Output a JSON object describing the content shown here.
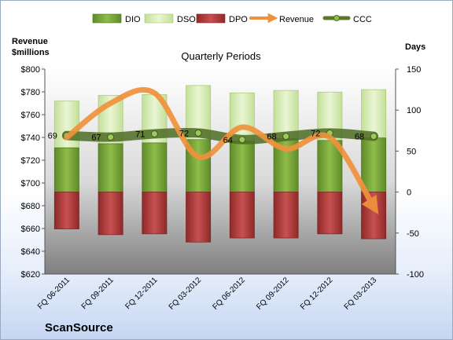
{
  "chart_data": {
    "type": "bar",
    "title": "Quarterly Periods",
    "left_axis_label_line1": "Revenue",
    "left_axis_label_line2": "$millions",
    "right_axis_label": "Days",
    "company": "ScanSource",
    "categories": [
      "FQ 06-2011",
      "FQ 09-2011",
      "FQ 12-2011",
      "FQ 03-2012",
      "FQ 06-2012",
      "FQ 09-2012",
      "FQ 12-2012",
      "FQ 03-2013"
    ],
    "left_axis": {
      "min": 620,
      "max": 800,
      "step": 20,
      "tick_labels": [
        "$620",
        "$640",
        "$660",
        "$680",
        "$700",
        "$720",
        "$740",
        "$760",
        "$780",
        "$800"
      ]
    },
    "right_axis": {
      "min": -100,
      "max": 150,
      "step": 50,
      "tick_labels": [
        "-100",
        "-50",
        "0",
        "50",
        "100",
        "150"
      ]
    },
    "series": [
      {
        "name": "DIO",
        "axis": "days",
        "kind": "stacked-bar",
        "color": "#7aa23a",
        "values": [
          54,
          59,
          60,
          64,
          62,
          65,
          63,
          66
        ]
      },
      {
        "name": "DSO",
        "axis": "days",
        "kind": "stacked-bar",
        "color": "#d6ebb4",
        "values": [
          57,
          59,
          59,
          66,
          59,
          59,
          59,
          59
        ]
      },
      {
        "name": "DPO",
        "axis": "days",
        "kind": "negative-bar",
        "color": "#b03a3a",
        "values": [
          -45,
          -52,
          -51,
          -61,
          -56,
          -56,
          -51,
          -57
        ]
      },
      {
        "name": "Revenue",
        "axis": "revenue",
        "kind": "line",
        "color": "#f0923c",
        "values": [
          740,
          770,
          779,
          723,
          749,
          730,
          740,
          679
        ]
      },
      {
        "name": "CCC",
        "axis": "days",
        "kind": "line-marker",
        "color": "#5c7a2c",
        "values": [
          69,
          67,
          71,
          72,
          64,
          68,
          72,
          68
        ]
      }
    ],
    "data_labels": [
      "69",
      "67",
      "71",
      "72",
      "64",
      "68",
      "72",
      "68"
    ],
    "legend": [
      "DIO",
      "DSO",
      "DPO",
      "Revenue",
      "CCC"
    ],
    "legend_position": "top"
  }
}
